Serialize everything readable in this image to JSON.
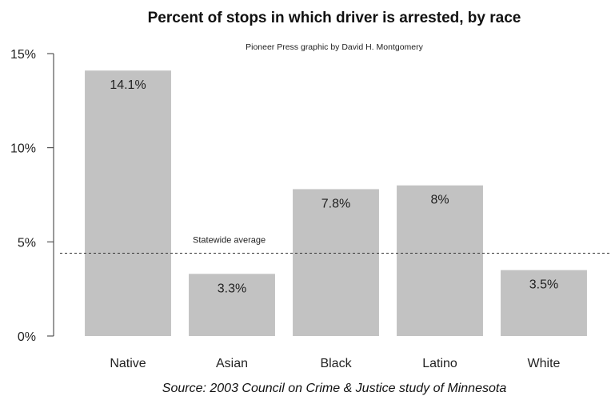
{
  "chart_data": {
    "type": "bar",
    "title": "Percent of stops in which driver is arrested, by race",
    "subtitle": "Pioneer Press graphic by David H. Montgomery",
    "source": "Source: 2003 Council on Crime & Justice study of Minnesota",
    "categories": [
      "Native",
      "Asian",
      "Black",
      "Latino",
      "White"
    ],
    "values": [
      14.1,
      3.3,
      7.8,
      8.0,
      3.5
    ],
    "value_labels": [
      "14.1%",
      "3.3%",
      "7.8%",
      "8%",
      "3.5%"
    ],
    "ylim": [
      0,
      15
    ],
    "yticks": [
      0,
      5,
      10,
      15
    ],
    "ytick_labels": [
      "0%",
      "5%",
      "10%",
      "15%"
    ],
    "reference_line": {
      "label": "Statewide average",
      "value": 4.4,
      "style": "dotted"
    },
    "grid": false,
    "legend": "none",
    "colors": {
      "bar": "#c2c2c2",
      "text": "#222222",
      "axis": "#333333"
    }
  }
}
